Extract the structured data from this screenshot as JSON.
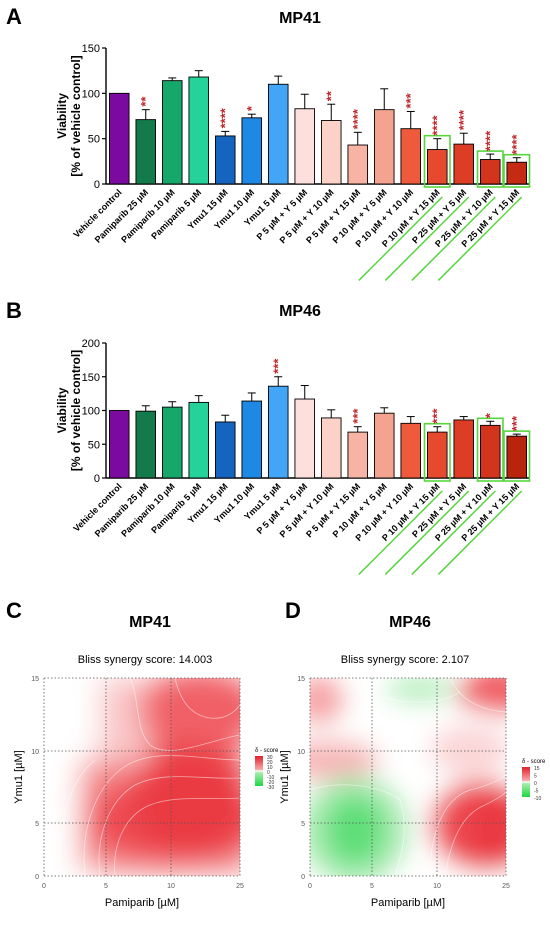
{
  "panels": {
    "a": {
      "letter": "A"
    },
    "b": {
      "letter": "B"
    },
    "c": {
      "letter": "C"
    },
    "d": {
      "letter": "D"
    }
  },
  "chart_data": [
    {
      "type": "bar",
      "title": "MP41",
      "ylabel_line1": "Viability",
      "ylabel_line2": "[% of vehicle control]",
      "ylim": [
        0,
        150
      ],
      "yticks": [
        0,
        50,
        100,
        150
      ],
      "categories": [
        "Vehicle control",
        "Pamiparib 25 µM",
        "Pamiparib 10 µM",
        "Pamiparib 5 µM",
        "Ymu1 15 µM",
        "Ymu1 10 µM",
        "Ymu1 5 µM",
        "P 5 µM + Y 5 µM",
        "P 5 µM + Y 10 µM",
        "P 5 µM + Y 15 µM",
        "P 10 µM + Y 5 µM",
        "P 10 µM + Y 10 µM",
        "P 10 µM + Y 15 µM",
        "P 25 µM + Y 5 µM",
        "P 25 µM + Y 10 µM",
        "P 25 µM + Y 15 µM"
      ],
      "values": [
        100,
        71,
        114,
        118,
        53,
        73,
        110,
        83,
        70,
        43,
        82,
        61,
        38,
        44,
        27,
        24
      ],
      "errors": [
        0,
        11,
        3,
        7,
        5,
        4,
        9,
        16,
        18,
        14,
        23,
        19,
        12,
        12,
        6,
        5
      ],
      "significance": [
        "",
        "**",
        "",
        "",
        "****",
        "*",
        "",
        "",
        "**",
        "****",
        "",
        "***",
        "****",
        "****",
        "****",
        "****"
      ],
      "colors": [
        "#7b0aa0",
        "#137a4c",
        "#16a86a",
        "#25d39a",
        "#1565c0",
        "#1e88e5",
        "#42a5f5",
        "#fde0dd",
        "#fcd2c8",
        "#f7b4a4",
        "#f3a390",
        "#ef5a3c",
        "#e64a2e",
        "#de3d25",
        "#d2341c",
        "#c42b12"
      ],
      "highlighted_categories": [
        "P 10 µM + Y 15 µM",
        "P 25 µM + Y 10 µM",
        "P 25 µM + Y 15 µM"
      ],
      "underlined_categories": [
        "P 10 µM + Y 15 µM",
        "P 25 µM + Y 5 µM",
        "P 25 µM + Y 10 µM",
        "P 25 µM + Y 15 µM"
      ]
    },
    {
      "type": "bar",
      "title": "MP46",
      "ylabel_line1": "Viability",
      "ylabel_line2": "[% of vehicle control]",
      "ylim": [
        0,
        200
      ],
      "yticks": [
        0,
        50,
        100,
        150,
        200
      ],
      "categories": [
        "Vehicle control",
        "Pamiparib 25 µM",
        "Pamiparib 10 µM",
        "Pamiparib 5 µM",
        "Ymu1 15 µM",
        "Ymu1 10 µM",
        "Ymu1 5 µM",
        "P 5 µM + Y 5 µM",
        "P 5 µM + Y 10 µM",
        "P 5 µM + Y 15 µM",
        "P 10 µM + Y 5 µM",
        "P 10 µM + Y 10 µM",
        "P 10 µM + Y 15 µM",
        "P 25 µM + Y 5 µM",
        "P 25 µM + Y 10 µM",
        "P 25 µM + Y 15 µM"
      ],
      "values": [
        100,
        99,
        105,
        112,
        83,
        114,
        136,
        117,
        89,
        68,
        96,
        81,
        68,
        86,
        78,
        62
      ],
      "errors": [
        0,
        8,
        8,
        10,
        10,
        12,
        14,
        20,
        12,
        8,
        8,
        10,
        8,
        5,
        6,
        3
      ],
      "significance": [
        "",
        "",
        "",
        "",
        "",
        "",
        "***",
        "",
        "",
        "***",
        "",
        "",
        "***",
        "",
        "*",
        "***"
      ],
      "colors": [
        "#7b0aa0",
        "#137a4c",
        "#16a86a",
        "#25d39a",
        "#1565c0",
        "#1e88e5",
        "#42a5f5",
        "#fde0dd",
        "#fcd2c8",
        "#f7b4a4",
        "#f3a390",
        "#ef5a3c",
        "#e64a2e",
        "#de3d25",
        "#d2341c",
        "#b8250c"
      ],
      "highlighted_categories": [
        "P 10 µM + Y 15 µM",
        "P 25 µM + Y 10 µM",
        "P 25 µM + Y 15 µM"
      ],
      "underlined_categories": [
        "P 10 µM + Y 15 µM",
        "P 25 µM + Y 5 µM",
        "P 25 µM + Y 10 µM",
        "P 25 µM + Y 15 µM"
      ]
    },
    {
      "type": "heatmap",
      "title": "MP41",
      "subtitle": "Bliss synergy score: 14.003",
      "xlabel": "Pamiparib [µM]",
      "ylabel": "Ymu1 [µM]",
      "xticks": [
        0,
        5,
        10,
        25
      ],
      "yticks": [
        0,
        5,
        10,
        15
      ],
      "grid": true,
      "legend_title": "δ - score",
      "legend_ticks": [
        30,
        20,
        10,
        0,
        -10,
        -20,
        -30
      ],
      "z_range": [
        -30,
        30
      ]
    },
    {
      "type": "heatmap",
      "title": "MP46",
      "subtitle": "Bliss synergy score: 2.107",
      "xlabel": "Pamiparib [µM]",
      "ylabel": "Ymu1 [µM]",
      "xticks": [
        0,
        5,
        10,
        25
      ],
      "yticks": [
        0,
        5,
        10,
        15
      ],
      "grid": true,
      "legend_title": "δ - score",
      "legend_ticks": [
        15,
        5,
        0,
        -5,
        -10
      ],
      "z_range": [
        -15,
        15
      ]
    }
  ]
}
